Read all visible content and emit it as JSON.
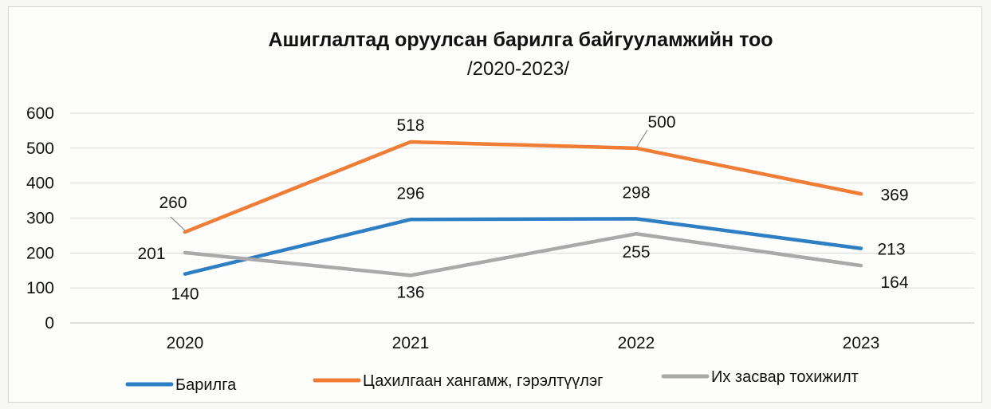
{
  "chart_data": {
    "type": "line",
    "title": "Ашиглалтад оруулсан барилга байгууламжийн тоо",
    "subtitle": "/2020-2023/",
    "categories": [
      "2020",
      "2021",
      "2022",
      "2023"
    ],
    "ylim": [
      0,
      600
    ],
    "yticks": [
      0,
      100,
      200,
      300,
      400,
      500,
      600
    ],
    "grid": true,
    "legend_position": "bottom",
    "series": [
      {
        "name": "Барилга",
        "color": "#2e7ec4",
        "values": [
          140,
          296,
          298,
          213
        ]
      },
      {
        "name": "Цахилгаан хангамж, гэрэлтүүлэг",
        "color": "#ef7d35",
        "values": [
          260,
          518,
          500,
          369
        ]
      },
      {
        "name": "Их засвар тохижилт",
        "color": "#a9a9a9",
        "values": [
          201,
          136,
          255,
          164
        ]
      }
    ]
  }
}
